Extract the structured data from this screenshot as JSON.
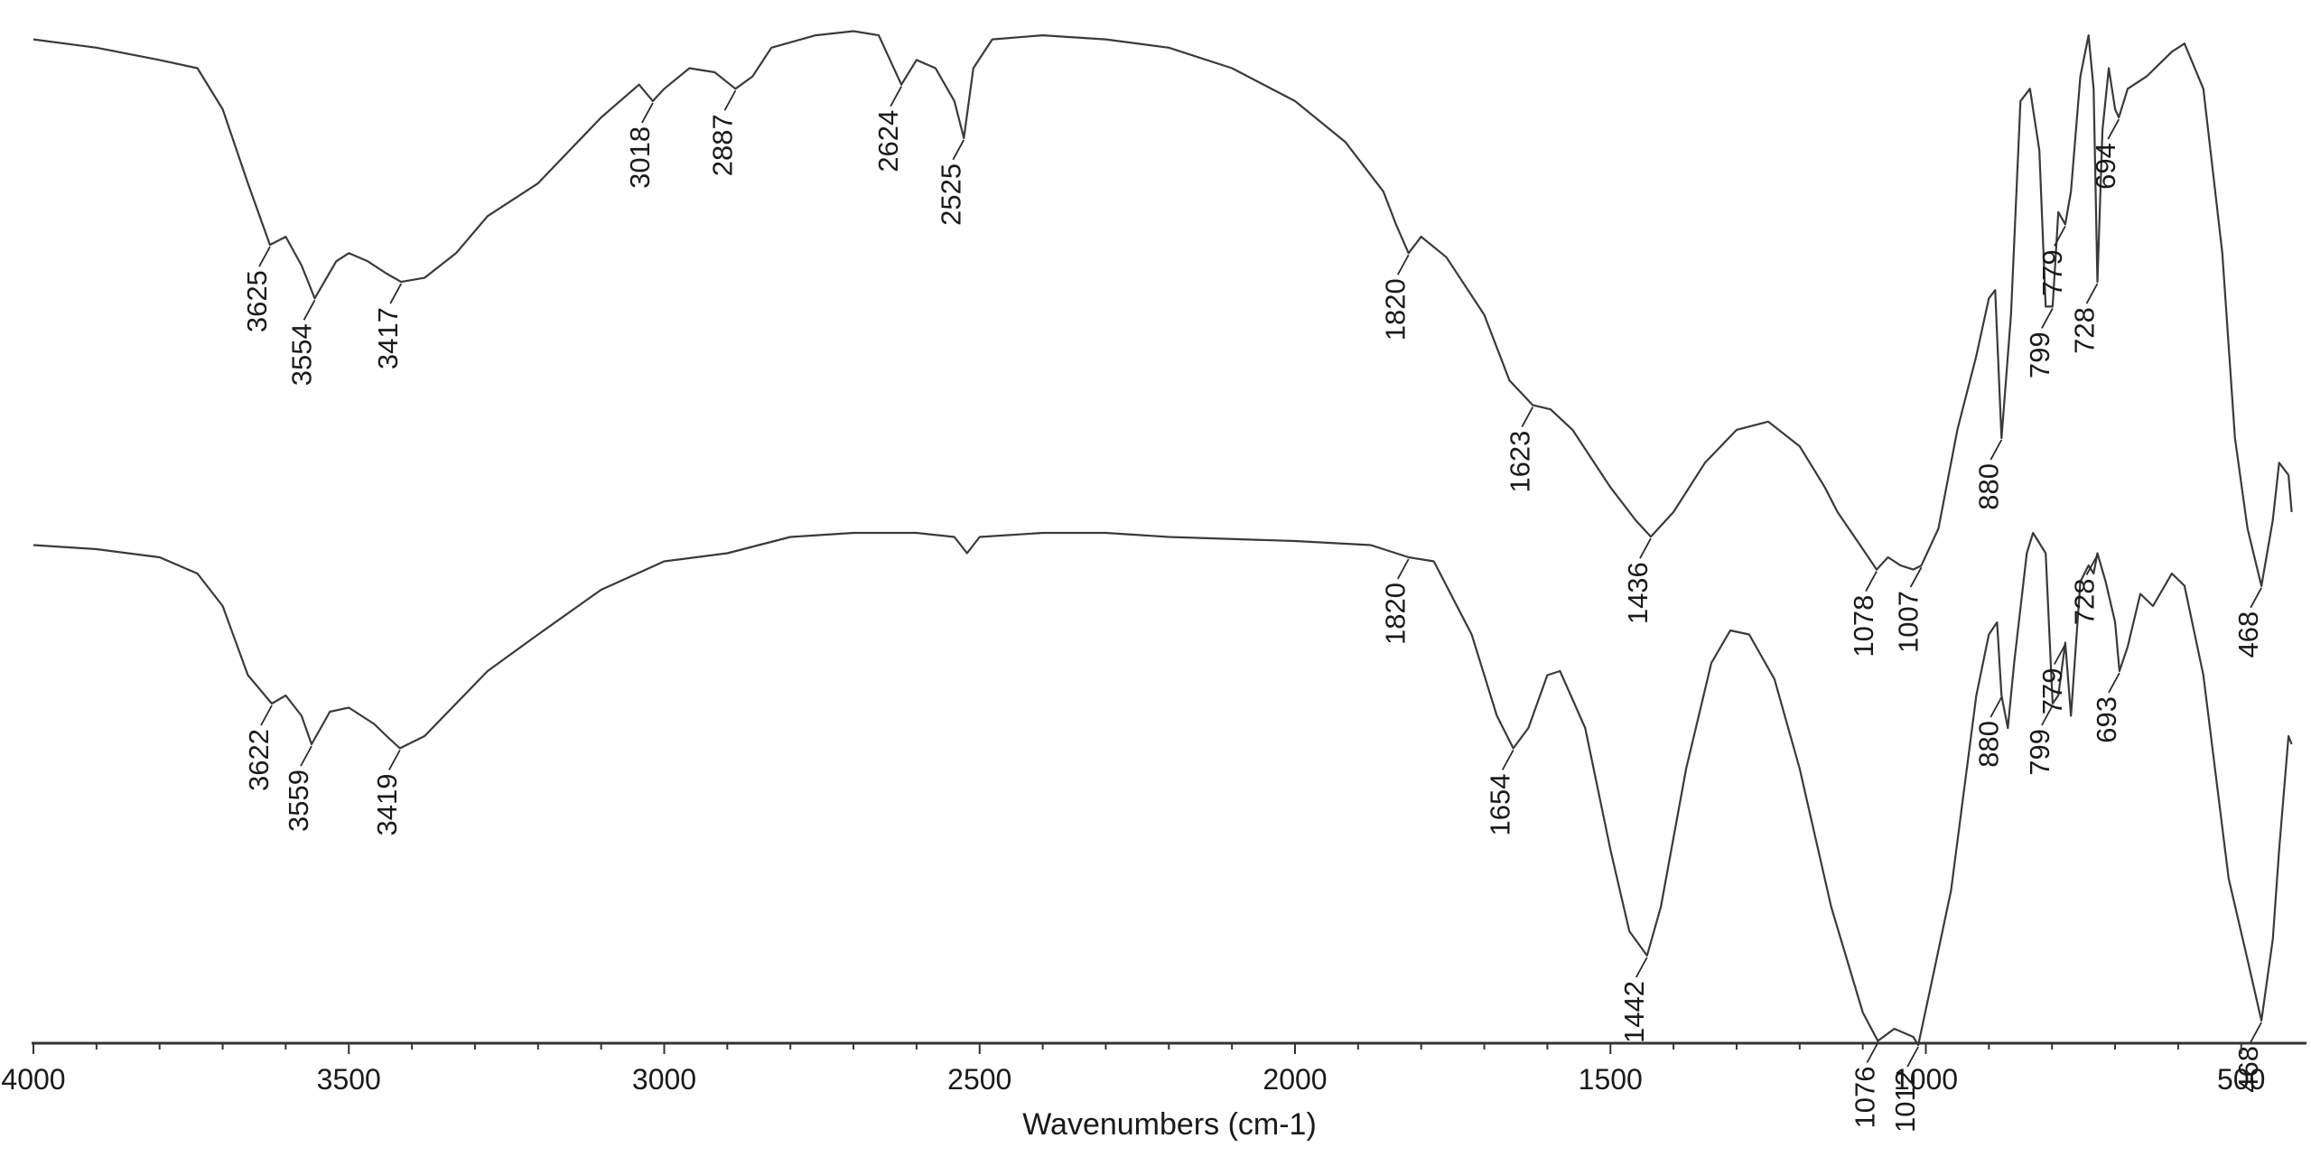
{
  "chart_data": {
    "type": "line",
    "title": "",
    "xlabel": "Wavenumbers (cm-1)",
    "ylabel": "",
    "xlim": [
      4000,
      420
    ],
    "x_reversed": true,
    "grid": false,
    "xticks": [
      4000,
      3500,
      3000,
      2500,
      2000,
      1500,
      1000,
      500
    ],
    "line_color": "#3a3a3a",
    "series": [
      {
        "points": [
          [
            4000,
            0.03
          ],
          [
            3900,
            0.05
          ],
          [
            3800,
            0.08
          ],
          [
            3740,
            0.1
          ],
          [
            3700,
            0.2
          ],
          [
            3660,
            0.38
          ],
          [
            3625,
            0.53
          ],
          [
            3600,
            0.51
          ],
          [
            3575,
            0.58
          ],
          [
            3554,
            0.66
          ],
          [
            3520,
            0.57
          ],
          [
            3500,
            0.55
          ],
          [
            3470,
            0.57
          ],
          [
            3440,
            0.6
          ],
          [
            3417,
            0.62
          ],
          [
            3380,
            0.61
          ],
          [
            3330,
            0.55
          ],
          [
            3280,
            0.46
          ],
          [
            3200,
            0.38
          ],
          [
            3100,
            0.22
          ],
          [
            3040,
            0.14
          ],
          [
            3018,
            0.18
          ],
          [
            3000,
            0.15
          ],
          [
            2960,
            0.1
          ],
          [
            2920,
            0.11
          ],
          [
            2887,
            0.15
          ],
          [
            2860,
            0.12
          ],
          [
            2830,
            0.05
          ],
          [
            2760,
            0.02
          ],
          [
            2700,
            0.01
          ],
          [
            2660,
            0.02
          ],
          [
            2624,
            0.14
          ],
          [
            2600,
            0.08
          ],
          [
            2570,
            0.1
          ],
          [
            2540,
            0.18
          ],
          [
            2525,
            0.27
          ],
          [
            2510,
            0.1
          ],
          [
            2480,
            0.03
          ],
          [
            2400,
            0.02
          ],
          [
            2300,
            0.03
          ],
          [
            2200,
            0.05
          ],
          [
            2100,
            0.1
          ],
          [
            2000,
            0.18
          ],
          [
            1920,
            0.28
          ],
          [
            1860,
            0.4
          ],
          [
            1840,
            0.48
          ],
          [
            1820,
            0.55
          ],
          [
            1800,
            0.51
          ],
          [
            1760,
            0.56
          ],
          [
            1700,
            0.7
          ],
          [
            1660,
            0.86
          ],
          [
            1623,
            0.92
          ],
          [
            1595,
            0.93
          ],
          [
            1560,
            0.98
          ],
          [
            1500,
            1.12
          ],
          [
            1460,
            1.2
          ],
          [
            1436,
            1.24
          ],
          [
            1400,
            1.18
          ],
          [
            1350,
            1.06
          ],
          [
            1300,
            0.98
          ],
          [
            1250,
            0.96
          ],
          [
            1200,
            1.02
          ],
          [
            1160,
            1.12
          ],
          [
            1140,
            1.18
          ],
          [
            1100,
            1.27
          ],
          [
            1078,
            1.32
          ],
          [
            1060,
            1.29
          ],
          [
            1040,
            1.31
          ],
          [
            1020,
            1.32
          ],
          [
            1007,
            1.31
          ],
          [
            980,
            1.22
          ],
          [
            950,
            0.98
          ],
          [
            920,
            0.8
          ],
          [
            900,
            0.66
          ],
          [
            890,
            0.64
          ],
          [
            880,
            1.0
          ],
          [
            865,
            0.7
          ],
          [
            850,
            0.18
          ],
          [
            835,
            0.15
          ],
          [
            820,
            0.3
          ],
          [
            810,
            0.68
          ],
          [
            799,
            0.68
          ],
          [
            790,
            0.45
          ],
          [
            779,
            0.48
          ],
          [
            770,
            0.4
          ],
          [
            755,
            0.12
          ],
          [
            742,
            0.02
          ],
          [
            734,
            0.15
          ],
          [
            728,
            0.62
          ],
          [
            720,
            0.25
          ],
          [
            710,
            0.1
          ],
          [
            700,
            0.2
          ],
          [
            694,
            0.22
          ],
          [
            680,
            0.15
          ],
          [
            650,
            0.12
          ],
          [
            610,
            0.06
          ],
          [
            590,
            0.04
          ],
          [
            560,
            0.15
          ],
          [
            530,
            0.55
          ],
          [
            510,
            1.0
          ],
          [
            490,
            1.22
          ],
          [
            468,
            1.36
          ],
          [
            450,
            1.2
          ],
          [
            440,
            1.06
          ],
          [
            425,
            1.09
          ],
          [
            420,
            1.18
          ]
        ]
      },
      {
        "points": [
          [
            4000,
            0.03
          ],
          [
            3900,
            0.04
          ],
          [
            3800,
            0.06
          ],
          [
            3740,
            0.1
          ],
          [
            3700,
            0.18
          ],
          [
            3660,
            0.35
          ],
          [
            3622,
            0.42
          ],
          [
            3600,
            0.4
          ],
          [
            3575,
            0.45
          ],
          [
            3559,
            0.52
          ],
          [
            3530,
            0.44
          ],
          [
            3500,
            0.43
          ],
          [
            3460,
            0.47
          ],
          [
            3440,
            0.5
          ],
          [
            3419,
            0.53
          ],
          [
            3380,
            0.5
          ],
          [
            3330,
            0.42
          ],
          [
            3280,
            0.34
          ],
          [
            3200,
            0.25
          ],
          [
            3100,
            0.14
          ],
          [
            3000,
            0.07
          ],
          [
            2900,
            0.05
          ],
          [
            2800,
            0.01
          ],
          [
            2700,
            0.0
          ],
          [
            2600,
            0.0
          ],
          [
            2540,
            0.01
          ],
          [
            2520,
            0.05
          ],
          [
            2500,
            0.01
          ],
          [
            2400,
            0.0
          ],
          [
            2300,
            0.0
          ],
          [
            2200,
            0.01
          ],
          [
            2000,
            0.02
          ],
          [
            1880,
            0.03
          ],
          [
            1840,
            0.05
          ],
          [
            1820,
            0.06
          ],
          [
            1780,
            0.07
          ],
          [
            1720,
            0.25
          ],
          [
            1680,
            0.45
          ],
          [
            1654,
            0.53
          ],
          [
            1630,
            0.48
          ],
          [
            1600,
            0.35
          ],
          [
            1580,
            0.34
          ],
          [
            1540,
            0.48
          ],
          [
            1500,
            0.78
          ],
          [
            1470,
            0.98
          ],
          [
            1442,
            1.04
          ],
          [
            1420,
            0.92
          ],
          [
            1380,
            0.58
          ],
          [
            1340,
            0.32
          ],
          [
            1310,
            0.24
          ],
          [
            1280,
            0.25
          ],
          [
            1240,
            0.36
          ],
          [
            1200,
            0.58
          ],
          [
            1150,
            0.92
          ],
          [
            1100,
            1.18
          ],
          [
            1076,
            1.25
          ],
          [
            1050,
            1.22
          ],
          [
            1020,
            1.24
          ],
          [
            1012,
            1.26
          ],
          [
            990,
            1.1
          ],
          [
            960,
            0.88
          ],
          [
            920,
            0.4
          ],
          [
            900,
            0.25
          ],
          [
            887,
            0.22
          ],
          [
            880,
            0.4
          ],
          [
            870,
            0.48
          ],
          [
            860,
            0.32
          ],
          [
            840,
            0.05
          ],
          [
            830,
            0.0
          ],
          [
            810,
            0.05
          ],
          [
            799,
            0.42
          ],
          [
            790,
            0.4
          ],
          [
            779,
            0.27
          ],
          [
            770,
            0.45
          ],
          [
            755,
            0.12
          ],
          [
            742,
            0.08
          ],
          [
            734,
            0.1
          ],
          [
            728,
            0.05
          ],
          [
            715,
            0.12
          ],
          [
            700,
            0.22
          ],
          [
            693,
            0.34
          ],
          [
            680,
            0.28
          ],
          [
            660,
            0.15
          ],
          [
            640,
            0.18
          ],
          [
            610,
            0.1
          ],
          [
            590,
            0.13
          ],
          [
            560,
            0.35
          ],
          [
            520,
            0.85
          ],
          [
            490,
            1.05
          ],
          [
            468,
            1.2
          ],
          [
            450,
            1.0
          ],
          [
            440,
            0.78
          ],
          [
            425,
            0.5
          ],
          [
            420,
            0.52
          ]
        ]
      }
    ],
    "annotations": [
      {
        "series": 0,
        "label": "3625",
        "x": 3625
      },
      {
        "series": 0,
        "label": "3554",
        "x": 3554
      },
      {
        "series": 0,
        "label": "3417",
        "x": 3417
      },
      {
        "series": 0,
        "label": "3018",
        "x": 3018
      },
      {
        "series": 0,
        "label": "2887",
        "x": 2887
      },
      {
        "series": 0,
        "label": "2624",
        "x": 2624
      },
      {
        "series": 0,
        "label": "2525",
        "x": 2525
      },
      {
        "series": 0,
        "label": "1820",
        "x": 1820
      },
      {
        "series": 0,
        "label": "1623",
        "x": 1623
      },
      {
        "series": 0,
        "label": "1436",
        "x": 1436
      },
      {
        "series": 0,
        "label": "1078",
        "x": 1078
      },
      {
        "series": 0,
        "label": "1007",
        "x": 1007
      },
      {
        "series": 0,
        "label": "880",
        "x": 880
      },
      {
        "series": 0,
        "label": "799",
        "x": 799
      },
      {
        "series": 0,
        "label": "779",
        "x": 779
      },
      {
        "series": 0,
        "label": "728",
        "x": 728
      },
      {
        "series": 0,
        "label": "694",
        "x": 694
      },
      {
        "series": 0,
        "label": "468",
        "x": 468
      },
      {
        "series": 1,
        "label": "3622",
        "x": 3622
      },
      {
        "series": 1,
        "label": "3559",
        "x": 3559
      },
      {
        "series": 1,
        "label": "3419",
        "x": 3419
      },
      {
        "series": 1,
        "label": "1820",
        "x": 1820
      },
      {
        "series": 1,
        "label": "1654",
        "x": 1654
      },
      {
        "series": 1,
        "label": "1442",
        "x": 1442
      },
      {
        "series": 1,
        "label": "1076",
        "x": 1076
      },
      {
        "series": 1,
        "label": "1012",
        "x": 1012
      },
      {
        "series": 1,
        "label": "880",
        "x": 880
      },
      {
        "series": 1,
        "label": "799",
        "x": 799
      },
      {
        "series": 1,
        "label": "779",
        "x": 779
      },
      {
        "series": 1,
        "label": "728",
        "x": 728
      },
      {
        "series": 1,
        "label": "693",
        "x": 693
      },
      {
        "series": 1,
        "label": "468",
        "x": 468
      }
    ]
  }
}
